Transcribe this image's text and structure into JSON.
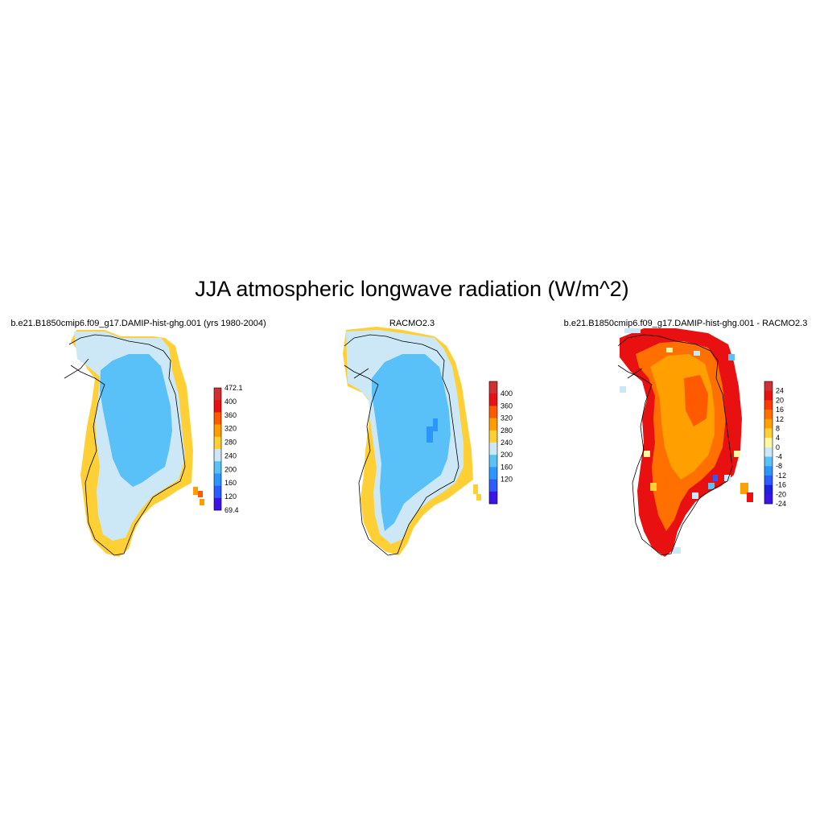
{
  "title": "JJA atmospheric longwave radiation (W/m^2)",
  "panels": [
    {
      "title": "b.e21.B1850cmip6.f09_g17.DAMIP-hist-ghg.001 (yrs 1980-2004)",
      "colorbar": {
        "labels": [
          "472.1",
          "400",
          "360",
          "320",
          "280",
          "240",
          "200",
          "160",
          "120",
          "69.4"
        ],
        "colors": [
          "#d03030",
          "#e81010",
          "#ff5a00",
          "#ff9c00",
          "#ffd036",
          "#cce8f6",
          "#5ac0f8",
          "#2c96ff",
          "#2c5cff",
          "#3c14e6"
        ]
      }
    },
    {
      "title": "RACMO2.3",
      "colorbar": {
        "labels": [
          "400",
          "360",
          "320",
          "280",
          "240",
          "200",
          "160",
          "120"
        ],
        "colors": [
          "#d03030",
          "#e81010",
          "#ff5a00",
          "#ff9c00",
          "#ffd036",
          "#cce8f6",
          "#5ac0f8",
          "#2c96ff",
          "#2c5cff",
          "#3c14e6"
        ]
      }
    },
    {
      "title": "b.e21.B1850cmip6.f09_g17.DAMIP-hist-ghg.001 - RACMO2.3",
      "colorbar": {
        "labels": [
          "24",
          "20",
          "16",
          "12",
          "8",
          "4",
          "0",
          "-4",
          "-8",
          "-12",
          "-16",
          "-20",
          "-24"
        ],
        "colors": [
          "#d03030",
          "#e81010",
          "#ff3a00",
          "#ff7000",
          "#ffa000",
          "#ffd036",
          "#fff8a0",
          "#cce8f6",
          "#5ac0f8",
          "#2c96ff",
          "#2c5cff",
          "#2020e0",
          "#3c14e6"
        ]
      }
    }
  ]
}
